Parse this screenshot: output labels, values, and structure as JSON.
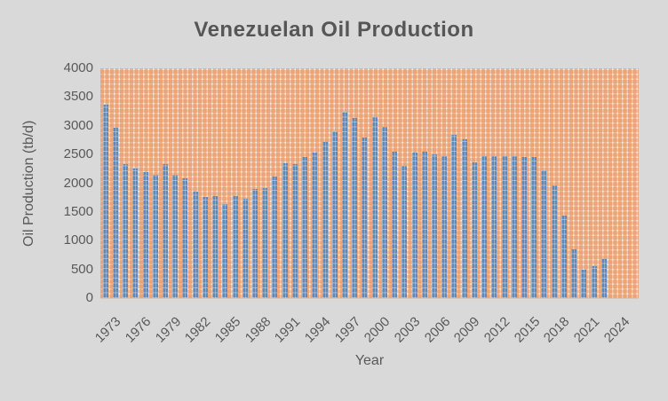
{
  "title": "Venezuelan Oil Production",
  "colors": {
    "canvas_background": "#d9d9d9",
    "bar_blue": "#6189b7",
    "pattern_orange": "#e6905c",
    "pattern_cream": "#faf2e6",
    "text_gray": "#595959",
    "title_gray": "#565656"
  },
  "chart_data": {
    "type": "bar",
    "title": "Venezuelan Oil Production",
    "xlabel": "Year",
    "ylabel": "Oil Production (tb/d)",
    "ylim": [
      0,
      4000
    ],
    "yticks": [
      0,
      500,
      1000,
      1500,
      2000,
      2500,
      3000,
      3500,
      4000
    ],
    "grid": "none",
    "legend": "none",
    "plot_area_fill": "orange dotted-grid pattern fill",
    "bar_fill": "blue dotted pattern",
    "categories": [
      1973,
      1974,
      1975,
      1976,
      1977,
      1978,
      1979,
      1980,
      1981,
      1982,
      1983,
      1984,
      1985,
      1986,
      1987,
      1988,
      1989,
      1990,
      1991,
      1992,
      1993,
      1994,
      1995,
      1996,
      1997,
      1998,
      1999,
      2000,
      2001,
      2002,
      2003,
      2004,
      2005,
      2006,
      2007,
      2008,
      2009,
      2010,
      2011,
      2012,
      2013,
      2014,
      2015,
      2016,
      2017,
      2018,
      2019,
      2020,
      2021,
      2022,
      2023
    ],
    "values": [
      3360,
      2960,
      2330,
      2260,
      2190,
      2140,
      2330,
      2140,
      2090,
      1855,
      1765,
      1780,
      1640,
      1780,
      1730,
      1895,
      1910,
      2110,
      2350,
      2330,
      2460,
      2540,
      2725,
      2910,
      3245,
      3130,
      2795,
      3155,
      2985,
      2550,
      2305,
      2535,
      2550,
      2510,
      2470,
      2845,
      2760,
      2360,
      2475,
      2465,
      2465,
      2465,
      2460,
      2460,
      2220,
      1960,
      1440,
      850,
      490,
      555,
      685
    ],
    "xtick_years": [
      1973,
      1976,
      1979,
      1982,
      1985,
      1988,
      1991,
      1994,
      1997,
      2000,
      2003,
      2006,
      2009,
      2012,
      2015,
      2018,
      2021,
      2024
    ],
    "xtick_rotation_deg": -45,
    "axis_slots": 54,
    "first_category_year": 1973,
    "note_2024": "2024 tick labeled on axis but has no bar"
  }
}
